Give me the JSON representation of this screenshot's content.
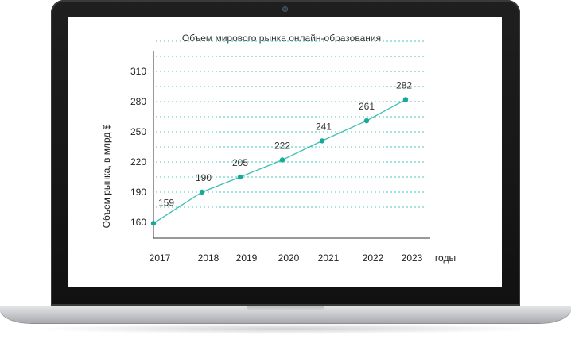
{
  "chart_data": {
    "type": "line",
    "title": "Объем мирового рынка онлайн-образования",
    "ylabel": "Объем рынка, в млрд $",
    "xlabel": "годы",
    "categories": [
      "2017",
      "2018",
      "2019",
      "2020",
      "2021",
      "2022",
      "2023"
    ],
    "series": [
      {
        "values": [
          159,
          190,
          205,
          222,
          241,
          261,
          282
        ]
      }
    ],
    "y_ticks": [
      160,
      190,
      220,
      250,
      280,
      310
    ],
    "ylim": [
      160,
      340
    ],
    "grid": true,
    "colors": {
      "line": "#3fbfb3",
      "marker": "#1aa89a",
      "grid": "#4cc7bb",
      "axis": "#333333"
    }
  }
}
